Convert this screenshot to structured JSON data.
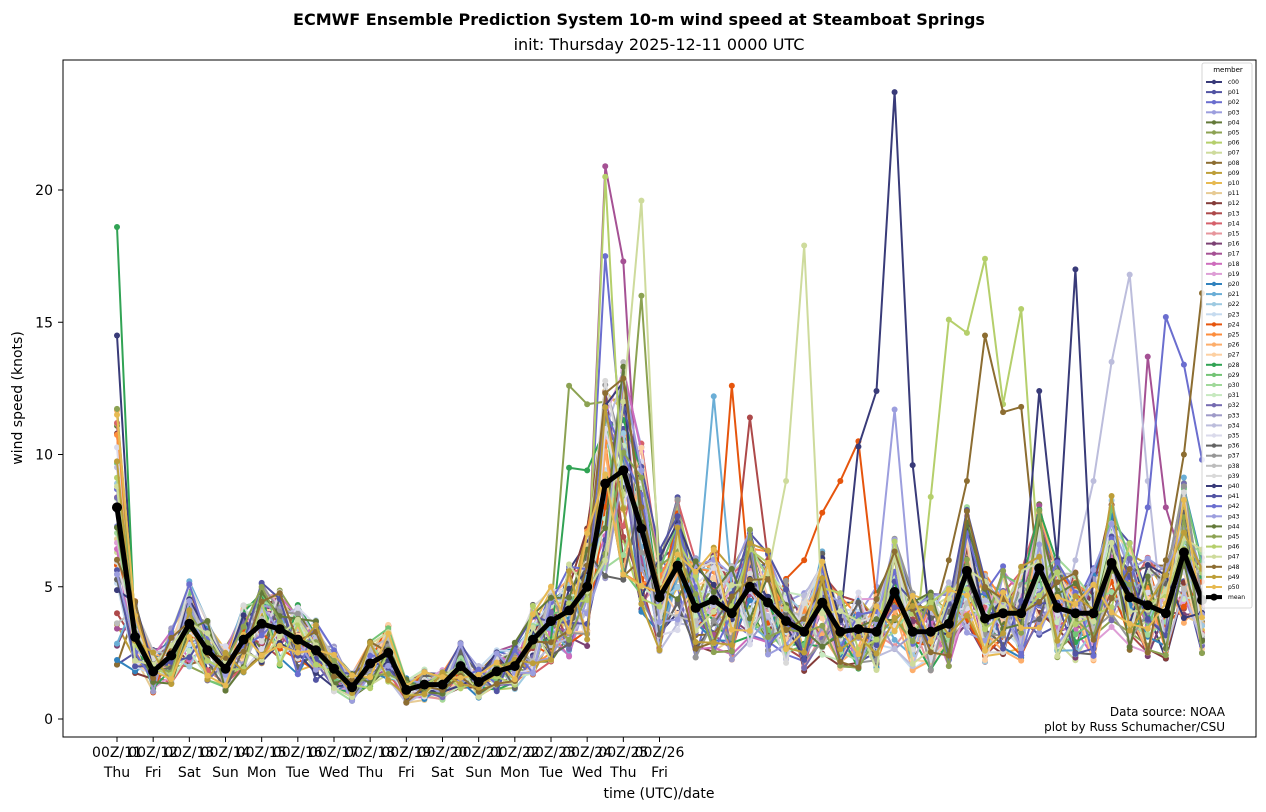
{
  "chart_data": {
    "type": "line",
    "title": "ECMWF Ensemble Prediction System 10-m wind speed at Steamboat Springs",
    "subtitle": "init: Thursday 2025-12-11 0000 UTC",
    "xlabel": "time (UTC)/date",
    "ylabel": "wind speed (knots)",
    "ylim": [
      -0.6,
      25.2
    ],
    "yticks": [
      0,
      5,
      10,
      15,
      20
    ],
    "x_hours": {
      "start": 0,
      "step": 12,
      "count": 61
    },
    "xticks": [
      {
        "top": "00Z/11",
        "bottom": "Thu"
      },
      {
        "top": "00Z/12",
        "bottom": "Fri"
      },
      {
        "top": "00Z/13",
        "bottom": "Sat"
      },
      {
        "top": "00Z/14",
        "bottom": "Sun"
      },
      {
        "top": "00Z/15",
        "bottom": "Mon"
      },
      {
        "top": "00Z/16",
        "bottom": "Tue"
      },
      {
        "top": "00Z/17",
        "bottom": "Wed"
      },
      {
        "top": "00Z/18",
        "bottom": "Thu"
      },
      {
        "top": "00Z/19",
        "bottom": "Fri"
      },
      {
        "top": "00Z/20",
        "bottom": "Sat"
      },
      {
        "top": "00Z/21",
        "bottom": "Sun"
      },
      {
        "top": "00Z/22",
        "bottom": "Mon"
      },
      {
        "top": "00Z/23",
        "bottom": "Tue"
      },
      {
        "top": "00Z/24",
        "bottom": "Wed"
      },
      {
        "top": "00Z/25",
        "bottom": "Thu"
      },
      {
        "top": "00Z/26",
        "bottom": "Fri"
      }
    ],
    "legend": {
      "title": "member",
      "placement": "top-right"
    },
    "credits": [
      "Data source: NOAA",
      "plot by Russ Schumacher/CSU"
    ],
    "mean": {
      "name": "mean",
      "color": "#000000",
      "values": [
        8.0,
        3.1,
        1.8,
        2.4,
        3.6,
        2.6,
        1.9,
        3.0,
        3.6,
        3.4,
        3.0,
        2.6,
        1.9,
        1.2,
        2.1,
        2.5,
        1.1,
        1.3,
        1.3,
        2.0,
        1.4,
        1.8,
        2.0,
        3.0,
        3.7,
        4.1,
        5.0,
        8.9,
        9.4,
        7.2,
        4.6,
        5.8,
        4.2,
        4.5,
        4.0,
        5.0,
        4.4,
        3.7,
        3.3,
        4.4,
        3.3,
        3.4,
        3.3,
        4.8,
        3.3,
        3.3,
        3.6,
        5.6,
        3.8,
        4.0,
        4.0,
        5.7,
        4.2,
        4.0,
        4.0,
        5.9,
        4.6,
        4.3,
        4.0,
        6.3,
        4.5
      ]
    },
    "members": [
      {
        "name": "c00",
        "color": "#393b79"
      },
      {
        "name": "p01",
        "color": "#5254a3"
      },
      {
        "name": "p02",
        "color": "#6b6ecf"
      },
      {
        "name": "p03",
        "color": "#9c9ede"
      },
      {
        "name": "p04",
        "color": "#637939"
      },
      {
        "name": "p05",
        "color": "#8ca252"
      },
      {
        "name": "p06",
        "color": "#b5cf6b"
      },
      {
        "name": "p07",
        "color": "#cedb9c"
      },
      {
        "name": "p08",
        "color": "#8c6d31"
      },
      {
        "name": "p09",
        "color": "#bd9e39"
      },
      {
        "name": "p10",
        "color": "#e7ba52"
      },
      {
        "name": "p11",
        "color": "#e7cb94"
      },
      {
        "name": "p12",
        "color": "#843c39"
      },
      {
        "name": "p13",
        "color": "#ad494a"
      },
      {
        "name": "p14",
        "color": "#d6616b"
      },
      {
        "name": "p15",
        "color": "#e7969c"
      },
      {
        "name": "p16",
        "color": "#7b4173"
      },
      {
        "name": "p17",
        "color": "#a55194"
      },
      {
        "name": "p18",
        "color": "#ce6dbd"
      },
      {
        "name": "p19",
        "color": "#de9ed6"
      },
      {
        "name": "p20",
        "color": "#3182bd"
      },
      {
        "name": "p21",
        "color": "#6baed6"
      },
      {
        "name": "p22",
        "color": "#9ecae1"
      },
      {
        "name": "p23",
        "color": "#c6dbef"
      },
      {
        "name": "p24",
        "color": "#e6550d"
      },
      {
        "name": "p25",
        "color": "#fd8d3c"
      },
      {
        "name": "p26",
        "color": "#fdae6b"
      },
      {
        "name": "p27",
        "color": "#fdd0a2"
      },
      {
        "name": "p28",
        "color": "#31a354"
      },
      {
        "name": "p29",
        "color": "#74c476"
      },
      {
        "name": "p30",
        "color": "#a1d99b"
      },
      {
        "name": "p31",
        "color": "#c7e9c0"
      },
      {
        "name": "p32",
        "color": "#756bb1"
      },
      {
        "name": "p33",
        "color": "#9e9ac8"
      },
      {
        "name": "p34",
        "color": "#bcbddc"
      },
      {
        "name": "p35",
        "color": "#dadaeb"
      },
      {
        "name": "p36",
        "color": "#636363"
      },
      {
        "name": "p37",
        "color": "#969696"
      },
      {
        "name": "p38",
        "color": "#bdbdbd"
      },
      {
        "name": "p39",
        "color": "#d9d9d9"
      },
      {
        "name": "p40",
        "color": "#393b79"
      },
      {
        "name": "p41",
        "color": "#5254a3"
      },
      {
        "name": "p42",
        "color": "#6b6ecf"
      },
      {
        "name": "p43",
        "color": "#9c9ede"
      },
      {
        "name": "p44",
        "color": "#637939"
      },
      {
        "name": "p45",
        "color": "#8ca252"
      },
      {
        "name": "p46",
        "color": "#b5cf6b"
      },
      {
        "name": "p47",
        "color": "#cedb9c"
      },
      {
        "name": "p48",
        "color": "#8c6d31"
      },
      {
        "name": "p49",
        "color": "#bd9e39"
      },
      {
        "name": "p50",
        "color": "#e7ba52"
      }
    ],
    "member_highlights": [
      {
        "member": "p28",
        "points": [
          [
            0,
            18.6
          ],
          [
            1,
            3.0
          ]
        ]
      },
      {
        "member": "c00",
        "points": [
          [
            0,
            14.5
          ],
          [
            1,
            3.2
          ]
        ]
      },
      {
        "member": "p40",
        "points": [
          [
            41,
            10.3
          ],
          [
            42,
            12.4
          ],
          [
            43,
            23.7
          ],
          [
            44,
            9.6
          ],
          [
            45,
            3.4
          ]
        ]
      },
      {
        "member": "p17",
        "points": [
          [
            26,
            5.0
          ],
          [
            27,
            20.9
          ],
          [
            28,
            17.3
          ],
          [
            29,
            6.0
          ]
        ]
      },
      {
        "member": "p46",
        "points": [
          [
            26,
            4.5
          ],
          [
            27,
            20.5
          ],
          [
            28,
            8.0
          ]
        ]
      },
      {
        "member": "p47",
        "points": [
          [
            27,
            6.0
          ],
          [
            28,
            12.0
          ],
          [
            29,
            19.6
          ],
          [
            30,
            5.0
          ]
        ]
      },
      {
        "member": "p47",
        "points": [
          [
            36,
            5.5
          ],
          [
            37,
            9.0
          ],
          [
            38,
            17.9
          ],
          [
            39,
            4.0
          ]
        ]
      },
      {
        "member": "p06",
        "points": [
          [
            45,
            8.4
          ],
          [
            46,
            15.1
          ],
          [
            47,
            14.6
          ],
          [
            48,
            17.4
          ],
          [
            49,
            11.9
          ],
          [
            50,
            15.5
          ],
          [
            51,
            5.6
          ]
        ]
      },
      {
        "member": "p40",
        "points": [
          [
            50,
            4.0
          ],
          [
            51,
            12.4
          ],
          [
            52,
            6.0
          ],
          [
            53,
            17.0
          ],
          [
            54,
            4.0
          ]
        ]
      },
      {
        "member": "p34",
        "points": [
          [
            53,
            6.0
          ],
          [
            54,
            9.0
          ],
          [
            55,
            13.5
          ],
          [
            56,
            16.8
          ],
          [
            57,
            9.0
          ]
        ]
      },
      {
        "member": "p42",
        "points": [
          [
            56,
            5.0
          ],
          [
            57,
            8.0
          ],
          [
            58,
            15.2
          ],
          [
            59,
            13.4
          ],
          [
            60,
            9.8
          ]
        ]
      },
      {
        "member": "p48",
        "points": [
          [
            58,
            6.0
          ],
          [
            59,
            10.0
          ],
          [
            60,
            16.1
          ]
        ]
      },
      {
        "member": "p05",
        "points": [
          [
            24,
            4.0
          ],
          [
            25,
            12.6
          ],
          [
            26,
            11.9
          ],
          [
            27,
            12.0
          ]
        ]
      },
      {
        "member": "p28",
        "points": [
          [
            24,
            3.0
          ],
          [
            25,
            9.5
          ],
          [
            26,
            9.4
          ],
          [
            27,
            11.0
          ]
        ]
      },
      {
        "member": "p24",
        "points": [
          [
            33,
            4.0
          ],
          [
            34,
            12.6
          ],
          [
            35,
            5.0
          ]
        ]
      },
      {
        "member": "p24",
        "points": [
          [
            38,
            6.0
          ],
          [
            39,
            7.8
          ],
          [
            40,
            9.0
          ],
          [
            41,
            10.5
          ],
          [
            42,
            4.5
          ]
        ]
      },
      {
        "member": "p12",
        "points": [
          [
            25,
            5.0
          ],
          [
            26,
            7.2
          ],
          [
            27,
            11.8
          ],
          [
            28,
            6.0
          ]
        ]
      },
      {
        "member": "p02",
        "points": [
          [
            26,
            5.0
          ],
          [
            27,
            17.5
          ],
          [
            28,
            10.0
          ]
        ]
      },
      {
        "member": "p05",
        "points": [
          [
            28,
            8.0
          ],
          [
            29,
            16.0
          ],
          [
            30,
            6.0
          ]
        ]
      },
      {
        "member": "p21",
        "points": [
          [
            32,
            4.5
          ],
          [
            33,
            12.2
          ],
          [
            34,
            5.0
          ]
        ]
      },
      {
        "member": "p13",
        "points": [
          [
            34,
            5.0
          ],
          [
            35,
            11.4
          ],
          [
            36,
            6.0
          ]
        ]
      },
      {
        "member": "p08",
        "points": [
          [
            46,
            6.0
          ],
          [
            47,
            9.0
          ],
          [
            48,
            14.5
          ],
          [
            49,
            11.6
          ],
          [
            50,
            11.8
          ],
          [
            51,
            5.0
          ]
        ]
      },
      {
        "member": "p17",
        "points": [
          [
            56,
            4.0
          ],
          [
            57,
            13.7
          ],
          [
            58,
            8.0
          ]
        ]
      },
      {
        "member": "p03",
        "points": [
          [
            42,
            5.0
          ],
          [
            43,
            11.7
          ],
          [
            44,
            4.0
          ]
        ]
      }
    ]
  }
}
